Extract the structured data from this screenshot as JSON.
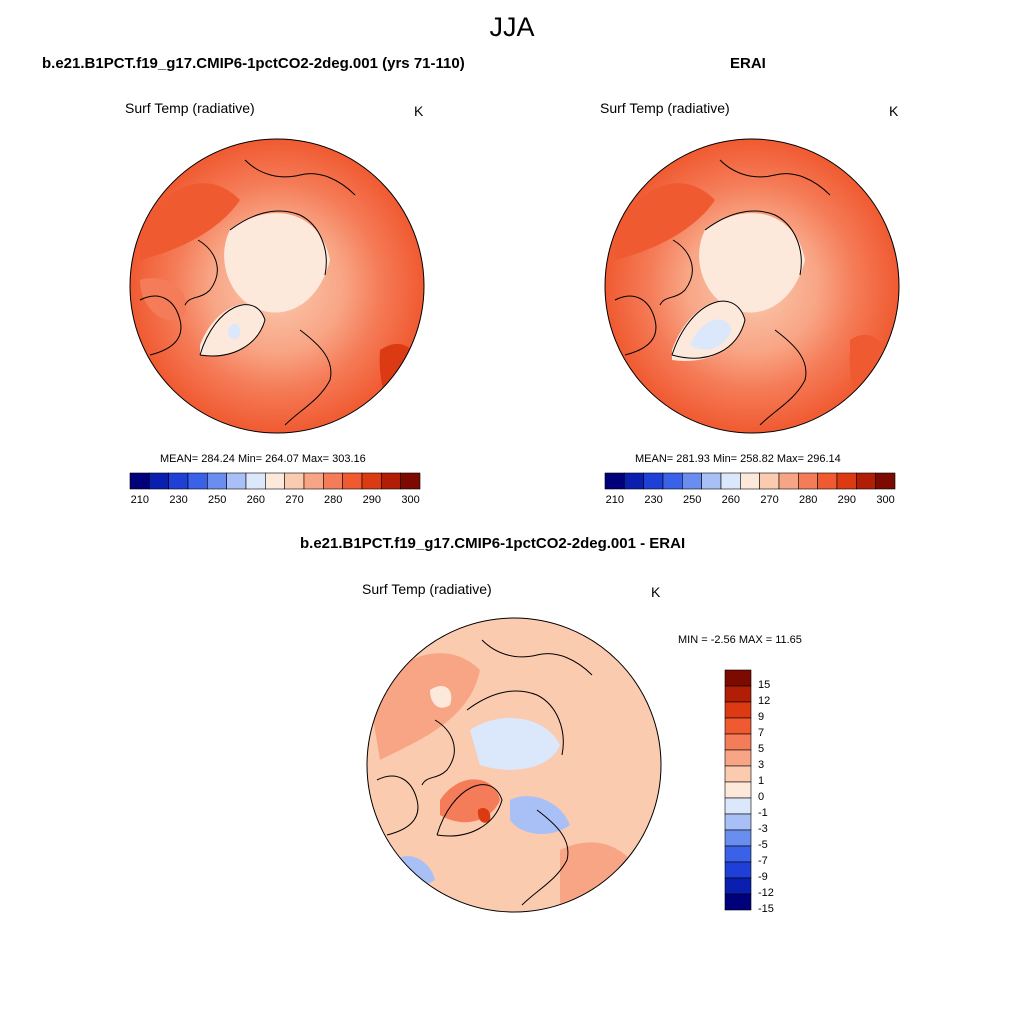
{
  "figure": {
    "season": "JJA"
  },
  "panels": {
    "model": {
      "title": "b.e21.B1PCT.f19_g17.CMIP6-1pctCO2-2deg.001 (yrs 71-110)",
      "variable": "Surf Temp (radiative)",
      "units": "K",
      "stats": "MEAN= 284.24  Min= 264.07  Max= 303.16"
    },
    "obs": {
      "title": "ERAI",
      "variable": "Surf Temp (radiative)",
      "units": "K",
      "stats": "MEAN= 281.93  Min= 258.82  Max= 296.14"
    },
    "diff": {
      "title": "b.e21.B1PCT.f19_g17.CMIP6-1pctCO2-2deg.001 - ERAI",
      "variable": "Surf Temp (radiative)",
      "units": "K",
      "minmax": "MIN =  -2.56 MAX =  11.65"
    }
  },
  "colorbars": {
    "abs_tick_labels": [
      "210",
      "230",
      "250",
      "260",
      "270",
      "280",
      "290",
      "300"
    ],
    "diff_tick_labels": [
      "15",
      "12",
      "9",
      "7",
      "5",
      "3",
      "1",
      "0",
      "-1",
      "-3",
      "-5",
      "-7",
      "-9",
      "-12",
      "-15"
    ],
    "abs_colors": [
      "#00007a",
      "#0a1fb0",
      "#1f40d6",
      "#3a62e8",
      "#6a8ef0",
      "#a8c0f6",
      "#dbe8fb",
      "#fde9dc",
      "#fbcbb0",
      "#f8a585",
      "#f57c58",
      "#f05a31",
      "#dc3a12",
      "#b21d06",
      "#7c0a00"
    ],
    "diff_colors": [
      "#7c0a00",
      "#b21d06",
      "#dc3a12",
      "#f05a31",
      "#f57c58",
      "#f8a585",
      "#fbcbb0",
      "#fde9dc",
      "#dbe8fb",
      "#a8c0f6",
      "#6a8ef0",
      "#3a62e8",
      "#1f40d6",
      "#0a1fb0",
      "#00007a"
    ]
  },
  "chart_data": [
    {
      "type": "heatmap",
      "title": "b.e21.B1PCT.f19_g17.CMIP6-1pctCO2-2deg.001 (yrs 71-110)",
      "subtitle": "Surf Temp (radiative)",
      "units": "K",
      "projection": "north polar stereographic",
      "mean": 284.24,
      "min": 264.07,
      "max": 303.16,
      "colorbar_levels": [
        210,
        230,
        250,
        260,
        270,
        280,
        290,
        300
      ]
    },
    {
      "type": "heatmap",
      "title": "ERAI",
      "subtitle": "Surf Temp (radiative)",
      "units": "K",
      "projection": "north polar stereographic",
      "mean": 281.93,
      "min": 258.82,
      "max": 296.14,
      "colorbar_levels": [
        210,
        230,
        250,
        260,
        270,
        280,
        290,
        300
      ]
    },
    {
      "type": "heatmap",
      "title": "b.e21.B1PCT.f19_g17.CMIP6-1pctCO2-2deg.001 - ERAI",
      "subtitle": "Surf Temp (radiative)",
      "units": "K",
      "projection": "north polar stereographic",
      "min": -2.56,
      "max": 11.65,
      "colorbar_levels": [
        -15,
        -12,
        -9,
        -7,
        -5,
        -3,
        -1,
        0,
        1,
        3,
        5,
        7,
        9,
        12,
        15
      ]
    }
  ]
}
